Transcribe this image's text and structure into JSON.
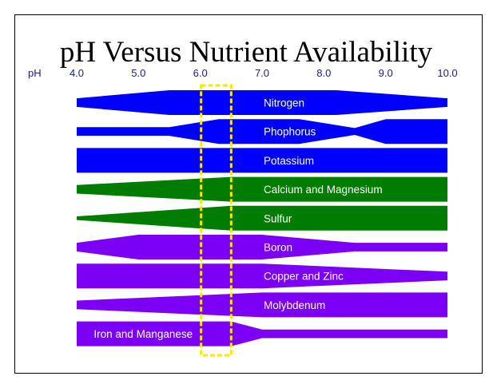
{
  "chart_data": {
    "type": "band",
    "title": "pH Versus Nutrient Availability",
    "xlabel": "pH",
    "xlim": [
      4.0,
      10.0
    ],
    "ticks": [
      "4.0",
      "5.0",
      "6.0",
      "7.0",
      "8.0",
      "9.0",
      "10.0"
    ],
    "highlight_range": [
      6.0,
      6.5
    ],
    "highlight_color": "#ffe600",
    "colors": {
      "blue": "#0000ff",
      "green": "#007d00",
      "purple": "#7b00f5",
      "axis_text": "#1a1a99"
    },
    "series": [
      {
        "name": "Nitrogen",
        "color": "blue",
        "label_at": 7.0,
        "profile": [
          [
            4.0,
            0.35
          ],
          [
            5.5,
            1.0
          ],
          [
            8.2,
            1.0
          ],
          [
            10.0,
            0.35
          ]
        ]
      },
      {
        "name": "Phophorus",
        "color": "blue",
        "label_at": 7.0,
        "profile": [
          [
            4.0,
            0.35
          ],
          [
            5.5,
            0.35
          ],
          [
            6.3,
            1.0
          ],
          [
            7.6,
            1.0
          ],
          [
            8.5,
            0.28
          ],
          [
            9.0,
            1.0
          ],
          [
            10.0,
            1.0
          ]
        ]
      },
      {
        "name": "Potassium",
        "color": "blue",
        "label_at": 7.0,
        "profile": [
          [
            4.0,
            1.0
          ],
          [
            10.0,
            1.0
          ]
        ]
      },
      {
        "name": "Calcium and Magnesium",
        "color": "green",
        "label_at": 7.0,
        "profile": [
          [
            4.0,
            0.35
          ],
          [
            6.5,
            1.0
          ],
          [
            10.0,
            1.0
          ]
        ]
      },
      {
        "name": "Sulfur",
        "color": "green",
        "label_at": 7.0,
        "profile": [
          [
            4.0,
            0.15
          ],
          [
            6.5,
            1.0
          ],
          [
            10.0,
            1.0
          ]
        ]
      },
      {
        "name": "Boron",
        "color": "purple",
        "label_at": 7.0,
        "profile": [
          [
            4.0,
            0.35
          ],
          [
            5.0,
            1.0
          ],
          [
            7.0,
            1.0
          ],
          [
            8.5,
            0.35
          ],
          [
            10.0,
            0.35
          ]
        ]
      },
      {
        "name": "Copper and Zinc",
        "color": "purple",
        "label_at": 7.0,
        "profile": [
          [
            4.0,
            1.0
          ],
          [
            7.0,
            1.0
          ],
          [
            10.0,
            0.35
          ]
        ]
      },
      {
        "name": "Molybdenum",
        "color": "purple",
        "label_at": 7.0,
        "profile": [
          [
            4.0,
            0.35
          ],
          [
            7.0,
            1.0
          ],
          [
            10.0,
            1.0
          ]
        ]
      },
      {
        "name": "Iron and Manganese",
        "color": "purple",
        "label_at": 4.25,
        "profile": [
          [
            4.0,
            1.0
          ],
          [
            6.5,
            1.0
          ],
          [
            7.0,
            0.35
          ],
          [
            10.0,
            0.35
          ]
        ]
      }
    ]
  }
}
